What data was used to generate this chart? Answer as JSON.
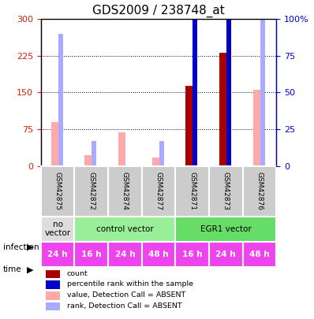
{
  "title": "GDS2009 / 238748_at",
  "samples": [
    "GSM42875",
    "GSM42872",
    "GSM42874",
    "GSM42877",
    "GSM42871",
    "GSM42873",
    "GSM42876"
  ],
  "count_values": [
    0,
    0,
    0,
    0,
    163,
    232,
    0
  ],
  "rank_values": [
    0,
    0,
    0,
    0,
    143,
    152,
    0
  ],
  "absent_value": [
    90,
    22,
    68,
    17,
    0,
    0,
    155
  ],
  "absent_rank": [
    90,
    17,
    0,
    17,
    0,
    0,
    110
  ],
  "ylim_left": [
    0,
    300
  ],
  "ylim_right": [
    0,
    100
  ],
  "yticks_left": [
    0,
    75,
    150,
    225,
    300
  ],
  "yticks_right": [
    0,
    25,
    50,
    75,
    100
  ],
  "infection_groups": [
    {
      "label": "no\nvector",
      "start": 0,
      "end": 1,
      "color": "#dddddd"
    },
    {
      "label": "control vector",
      "start": 1,
      "end": 4,
      "color": "#99ee99"
    },
    {
      "label": "EGR1 vector",
      "start": 4,
      "end": 7,
      "color": "#66dd66"
    }
  ],
  "time_labels": [
    "24 h",
    "16 h",
    "24 h",
    "48 h",
    "16 h",
    "24 h",
    "48 h"
  ],
  "time_color": "#ee44ee",
  "color_count": "#aa0000",
  "color_rank": "#0000cc",
  "color_absent_value": "#ffaaaa",
  "color_absent_rank": "#aaaaff",
  "left_axis_color": "#cc2200",
  "right_axis_color": "#0000cc",
  "bar_width": 0.35,
  "legend_items": [
    {
      "color": "#aa0000",
      "label": "count"
    },
    {
      "color": "#0000cc",
      "label": "percentile rank within the sample"
    },
    {
      "color": "#ffaaaa",
      "label": "value, Detection Call = ABSENT"
    },
    {
      "color": "#aaaaff",
      "label": "rank, Detection Call = ABSENT"
    }
  ]
}
